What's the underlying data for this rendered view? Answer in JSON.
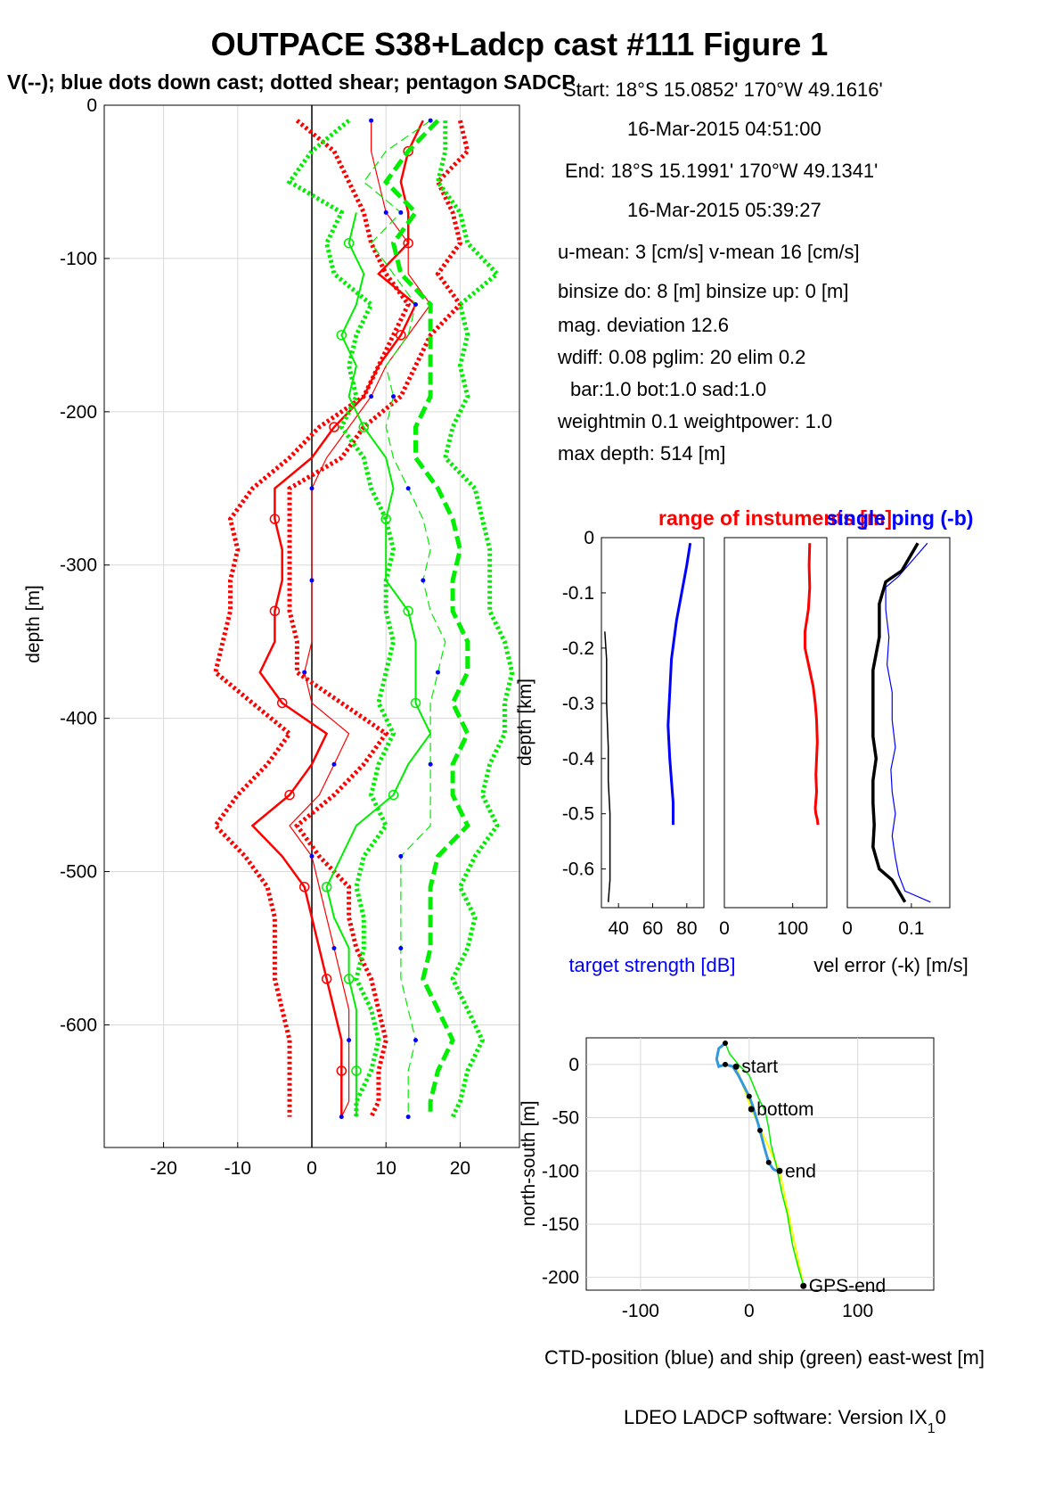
{
  "title": "OUTPACE S38+Ladcp cast #111  Figure 1",
  "subtitle": "V(--); blue dots down cast; dotted shear; pentagon SADCP",
  "info_lines": [
    "Start:  18°S 15.0852'      170°W 49.1616'",
    "16-Mar-2015 04:51:00",
    "End:   18°S 15.1991'      170°W 49.1341'",
    "16-Mar-2015 05:39:27",
    "u-mean:   3 [cm/s]    v-mean  16 [cm/s]",
    "binsize do: 8 [m]  binsize up:  0 [m]",
    "mag. deviation 12.6",
    "wdiff: 0.08  pglim: 20  elim 0.2",
    "bar:1.0 bot:1.0 sad:1.0",
    "weightmin 0.1  weightpower: 1.0",
    "max depth: 514 [m]"
  ],
  "footer": "LDEO LADCP software: Version IX",
  "footer_sub": "1",
  "footer_tail": "0",
  "colors": {
    "u": "#ff0000",
    "v": "#00ee00",
    "blue": "#0000ff",
    "black": "#000000",
    "yellow": "#ffff00",
    "grid": "#d9d9d9"
  },
  "chart_data": [
    {
      "type": "line",
      "name": "velocity-profile",
      "ylabel": "depth [m]",
      "xlabel": "",
      "xlim": [
        -28,
        28
      ],
      "ylim": [
        -680,
        0
      ],
      "xticks": [
        -20,
        -10,
        0,
        10,
        20
      ],
      "yticks": [
        0,
        -100,
        -200,
        -300,
        -400,
        -500,
        -600
      ],
      "ytick_labels": [
        "0",
        "-100",
        "-200",
        "-300",
        "-400",
        "-500",
        "-600"
      ],
      "grid": true,
      "depth": [
        -10,
        -30,
        -50,
        -70,
        -90,
        -110,
        -130,
        -150,
        -170,
        -190,
        -210,
        -230,
        -250,
        -270,
        -290,
        -310,
        -330,
        -350,
        -370,
        -390,
        -410,
        -430,
        -450,
        -470,
        -490,
        -510,
        -530,
        -550,
        -570,
        -590,
        -610,
        -630,
        -650,
        -660
      ],
      "series": [
        {
          "values": [
            15,
            13,
            12,
            13,
            13,
            9,
            14,
            12,
            9,
            7,
            3,
            0,
            -5,
            -5,
            -4,
            -4,
            -5,
            -5,
            -7,
            -4,
            2,
            0,
            -3,
            -8,
            -4,
            -1,
            0,
            1,
            2,
            3,
            4,
            4,
            4,
            4
          ]
        },
        {
          "values": [
            8,
            8,
            9,
            10,
            13,
            13,
            16,
            13,
            10,
            8,
            5,
            2,
            0,
            0,
            0,
            0,
            0,
            0,
            -1,
            0,
            5,
            3,
            1,
            -3,
            0,
            1,
            2,
            3,
            4,
            5,
            5,
            5,
            5,
            4
          ]
        },
        {
          "values": [
            20,
            21,
            17,
            19,
            20,
            17,
            20,
            16,
            14,
            12,
            7,
            4,
            -3,
            -3,
            -3,
            -3,
            -3,
            -2,
            -2,
            4,
            10,
            7,
            3,
            -2,
            1,
            5,
            5,
            6,
            8,
            9,
            10,
            9,
            9,
            8
          ]
        },
        {
          "values": [
            -2,
            3,
            5,
            7,
            8,
            10,
            13,
            11,
            9,
            7,
            1,
            -3,
            -8,
            -11,
            -10,
            -11,
            -11,
            -12,
            -13,
            -8,
            -3,
            -6,
            -10,
            -13,
            -9,
            -6,
            -5,
            -5,
            -5,
            -4,
            -3,
            -3,
            -3,
            -3
          ]
        },
        {
          "values": [
            17,
            13,
            10,
            14,
            11,
            12,
            16,
            16,
            16,
            16,
            14,
            14,
            17,
            19,
            20,
            19,
            19,
            21,
            21,
            19,
            21,
            19,
            19,
            21,
            17,
            16,
            16,
            16,
            15,
            17,
            19,
            17,
            16,
            16
          ]
        },
        {
          "values": [
            16,
            10,
            7,
            12,
            8,
            11,
            14,
            13,
            10,
            11,
            10,
            11,
            13,
            15,
            16,
            15,
            16,
            18,
            17,
            16,
            16,
            16,
            16,
            16,
            12,
            12,
            12,
            12,
            12,
            13,
            14,
            13,
            13,
            13
          ]
        },
        {
          "values": [
            18,
            18,
            17,
            20,
            21,
            25,
            20,
            21,
            20,
            21,
            19,
            18,
            22,
            23,
            24,
            24,
            24,
            26,
            27,
            26,
            26,
            24,
            23,
            25,
            22,
            20,
            22,
            21,
            19,
            21,
            23,
            21,
            20,
            19
          ]
        },
        {
          "values": [
            5,
            0,
            -3,
            4,
            2,
            3,
            8,
            6,
            5,
            6,
            4,
            7,
            8,
            10,
            11,
            10,
            10,
            11,
            10,
            9,
            11,
            9,
            8,
            10,
            7,
            6,
            7,
            7,
            6,
            8,
            9,
            8,
            6,
            6
          ]
        },
        {
          "values": [
            null,
            null,
            null,
            6,
            5,
            7,
            6,
            4,
            6,
            5,
            7,
            10,
            11,
            10,
            10,
            10,
            13,
            14,
            14,
            14,
            16,
            13,
            11,
            6,
            4,
            2,
            3,
            5,
            5,
            6,
            6,
            6,
            6,
            6
          ]
        }
      ]
    },
    {
      "type": "line",
      "name": "target-strength",
      "xlabel": "target strength [dB]",
      "ylabel": "depth [km]",
      "xlim": [
        30,
        90
      ],
      "ylim": [
        -0.67,
        0
      ],
      "xticks": [
        40,
        60,
        80
      ],
      "yticks": [
        0,
        -0.1,
        -0.2,
        -0.3,
        -0.4,
        -0.5,
        -0.6
      ],
      "x": [
        82,
        80,
        77,
        74,
        71,
        70,
        69,
        70,
        71,
        72,
        72
      ],
      "y": [
        -0.01,
        -0.05,
        -0.1,
        -0.15,
        -0.22,
        -0.28,
        -0.34,
        -0.4,
        -0.44,
        -0.48,
        -0.52
      ],
      "x2": [
        32,
        33,
        33,
        34,
        34,
        35,
        35,
        35,
        34
      ],
      "y2": [
        -0.17,
        -0.22,
        -0.3,
        -0.38,
        -0.44,
        -0.5,
        -0.56,
        -0.62,
        -0.66
      ]
    },
    {
      "type": "line",
      "name": "instrument-range",
      "title": "range of instuments [m]",
      "xlim": [
        0,
        150
      ],
      "ylim": [
        -0.67,
        0
      ],
      "xticks": [
        0,
        100
      ],
      "x": [
        125,
        124,
        125,
        123,
        118,
        118,
        125,
        130,
        133,
        135,
        136,
        135,
        134,
        135,
        133,
        134,
        136,
        137
      ],
      "y": [
        -0.01,
        -0.05,
        -0.09,
        -0.13,
        -0.17,
        -0.2,
        -0.24,
        -0.27,
        -0.3,
        -0.33,
        -0.37,
        -0.4,
        -0.43,
        -0.46,
        -0.49,
        -0.5,
        -0.51,
        -0.52
      ]
    },
    {
      "type": "line",
      "name": "velocity-error",
      "title": "single ping (-b)",
      "xlabel": "vel error (-k) [m/s]",
      "xlim": [
        0,
        0.16
      ],
      "ylim": [
        -0.67,
        0
      ],
      "xticks": [
        0,
        0.1
      ],
      "tick_labels": [
        "0",
        "0.1"
      ],
      "x": [
        0.11,
        0.1,
        0.09,
        0.085,
        0.06,
        0.05,
        0.05,
        0.04,
        0.04,
        0.04,
        0.045,
        0.04,
        0.04,
        0.042,
        0.04,
        0.045,
        0.05,
        0.07,
        0.08,
        0.09
      ],
      "y": [
        -0.01,
        -0.03,
        -0.05,
        -0.06,
        -0.08,
        -0.12,
        -0.18,
        -0.24,
        -0.3,
        -0.36,
        -0.4,
        -0.44,
        -0.48,
        -0.52,
        -0.56,
        -0.58,
        -0.6,
        -0.62,
        -0.64,
        -0.66
      ],
      "x2": [
        0.125,
        0.11,
        0.095,
        0.08,
        0.06,
        0.06,
        0.065,
        0.062,
        0.07,
        0.07,
        0.075,
        0.068,
        0.07,
        0.075,
        0.07,
        0.075,
        0.08,
        0.09,
        0.13
      ],
      "y2": [
        -0.01,
        -0.03,
        -0.05,
        -0.07,
        -0.09,
        -0.13,
        -0.18,
        -0.23,
        -0.28,
        -0.33,
        -0.38,
        -0.42,
        -0.46,
        -0.5,
        -0.54,
        -0.58,
        -0.61,
        -0.64,
        -0.66
      ]
    },
    {
      "type": "line",
      "name": "ctd-position",
      "xlabel": "CTD-position (blue) and ship (green) east-west [m]",
      "ylabel": "north-south [m]",
      "xlim": [
        -150,
        170
      ],
      "ylim": [
        -212,
        25
      ],
      "xticks": [
        -100,
        0,
        100
      ],
      "yticks": [
        0,
        -50,
        -100,
        -150,
        -200
      ],
      "ytick_labels": [
        "0",
        "-50",
        "-100",
        "-150",
        "-200"
      ],
      "ctd_x": [
        -22,
        -28,
        -30,
        -28,
        -22,
        -15,
        -10,
        -5,
        0,
        3,
        5,
        8,
        10,
        12,
        14,
        16,
        18,
        20,
        22,
        25
      ],
      "ctd_y": [
        20,
        15,
        5,
        -2,
        0,
        -2,
        -10,
        -20,
        -30,
        -38,
        -45,
        -55,
        -62,
        -70,
        -78,
        -85,
        -92,
        -95,
        -98,
        -100
      ],
      "ship_x": [
        -22,
        -18,
        -10,
        0,
        8,
        15,
        18,
        20,
        25,
        30,
        35,
        40,
        45,
        50
      ],
      "ship_y": [
        20,
        10,
        0,
        -10,
        -30,
        -45,
        -60,
        -75,
        -95,
        -120,
        -140,
        -170,
        -190,
        -208
      ],
      "markers": [
        {
          "label": "start",
          "x": -12,
          "y": -2
        },
        {
          "label": "bottom",
          "x": 2,
          "y": -42
        },
        {
          "label": "end",
          "x": 28,
          "y": -100
        },
        {
          "label": "GPS-end",
          "x": 50,
          "y": -208
        }
      ]
    }
  ]
}
